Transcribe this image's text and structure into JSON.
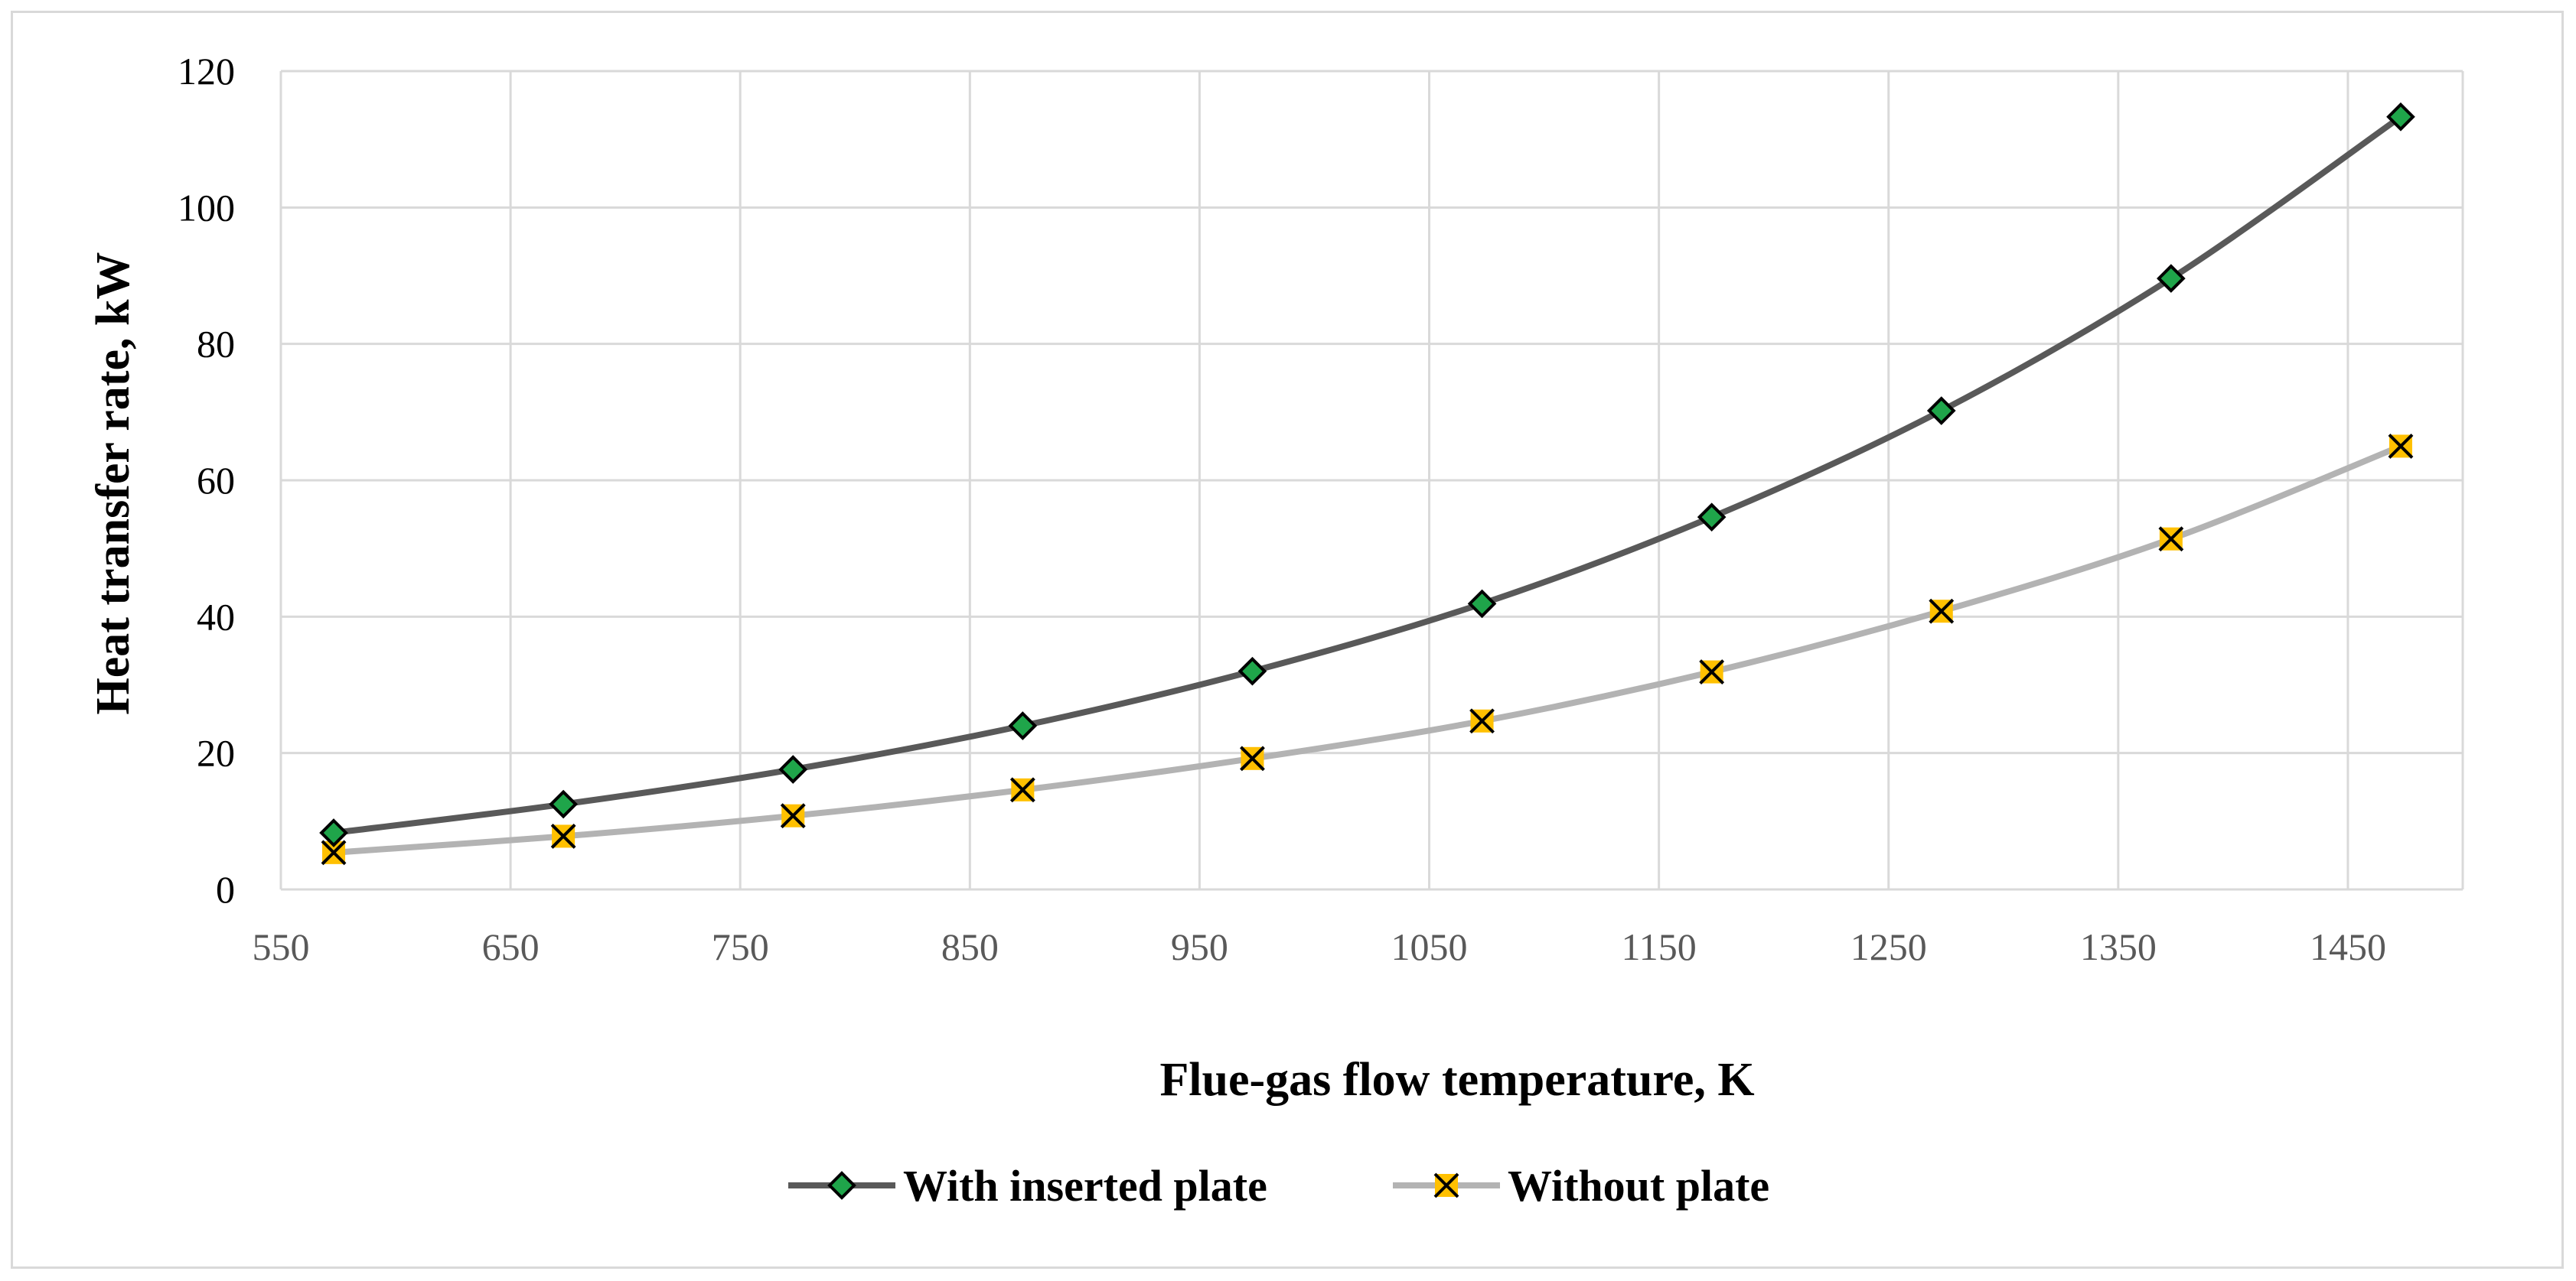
{
  "chart_data": {
    "type": "line",
    "title": "",
    "xlabel": "Flue-gas flow temperature, K",
    "ylabel": "Heat transfer rate, kW",
    "xlim": [
      550,
      1500
    ],
    "ylim": [
      0,
      120
    ],
    "xticks": [
      550,
      650,
      750,
      850,
      950,
      1050,
      1150,
      1250,
      1350,
      1450
    ],
    "yticks": [
      0,
      20,
      40,
      60,
      80,
      100,
      120
    ],
    "grid": true,
    "legend_position": "bottom",
    "x": [
      573,
      673,
      773,
      873,
      973,
      1073,
      1173,
      1273,
      1373,
      1473
    ],
    "series": [
      {
        "name": "With inserted plate",
        "color": "#595959",
        "marker": "diamond",
        "marker_color": "#1fa54a",
        "values": [
          8.3,
          12.5,
          17.6,
          24.0,
          32.0,
          41.9,
          54.6,
          70.2,
          89.6,
          113.3
        ]
      },
      {
        "name": "Without plate",
        "color": "#b3b3b3",
        "marker": "x-square",
        "marker_color": "#ffc000",
        "values": [
          5.4,
          7.8,
          10.8,
          14.6,
          19.2,
          24.7,
          31.9,
          40.8,
          51.4,
          65.0
        ]
      }
    ]
  }
}
